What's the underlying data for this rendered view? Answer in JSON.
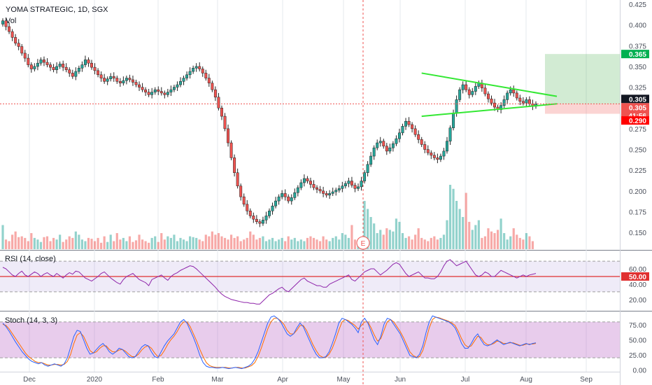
{
  "header": {
    "symbol_line": "YOMA STRATEGIC, 1D, SGX",
    "vol_label": "Vol"
  },
  "colors": {
    "up": "#26a69a",
    "down": "#ef5350",
    "accent": "#3179f5"
  },
  "chart_data": [
    {
      "type": "candlestick",
      "title": "YOMA STRATEGIC, 1D, SGX",
      "x_labels": [
        "Dec",
        "2020",
        "Feb",
        "Mar",
        "Apr",
        "May",
        "Jun",
        "Jul",
        "Aug",
        "Sep"
      ],
      "y_ticks": [
        "0.425",
        "0.400",
        "0.375",
        "0.350",
        "0.325",
        "0.300",
        "0.275",
        "0.250",
        "0.225",
        "0.200",
        "0.175",
        "0.150"
      ],
      "ylim": [
        0.14,
        0.425
      ],
      "price_levels": [
        {
          "label": "0.365",
          "value": 0.365,
          "color": "#00b050"
        },
        {
          "label": "0.305",
          "value": 0.305,
          "color": "#131722"
        },
        {
          "label": "0.305",
          "value": 0.305,
          "color": "#ef5350"
        },
        {
          "label": "41:56",
          "value": 0.296,
          "color": "#ef5350"
        },
        {
          "label": "0.290",
          "value": 0.29,
          "color": "#ff0000"
        }
      ],
      "closes": [
        0.405,
        0.398,
        0.392,
        0.385,
        0.378,
        0.374,
        0.366,
        0.36,
        0.352,
        0.347,
        0.35,
        0.354,
        0.358,
        0.355,
        0.352,
        0.349,
        0.346,
        0.35,
        0.353,
        0.349,
        0.346,
        0.342,
        0.338,
        0.344,
        0.348,
        0.352,
        0.358,
        0.354,
        0.349,
        0.345,
        0.34,
        0.336,
        0.332,
        0.335,
        0.338,
        0.336,
        0.332,
        0.33,
        0.333,
        0.336,
        0.334,
        0.331,
        0.328,
        0.325,
        0.322,
        0.319,
        0.316,
        0.319,
        0.322,
        0.32,
        0.318,
        0.316,
        0.319,
        0.322,
        0.325,
        0.328,
        0.332,
        0.336,
        0.34,
        0.344,
        0.348,
        0.35,
        0.347,
        0.342,
        0.336,
        0.33,
        0.322,
        0.313,
        0.3,
        0.29,
        0.275,
        0.258,
        0.24,
        0.222,
        0.206,
        0.193,
        0.184,
        0.176,
        0.17,
        0.166,
        0.163,
        0.161,
        0.165,
        0.17,
        0.176,
        0.182,
        0.188,
        0.193,
        0.197,
        0.193,
        0.188,
        0.192,
        0.198,
        0.204,
        0.21,
        0.215,
        0.212,
        0.208,
        0.204,
        0.202,
        0.2,
        0.197,
        0.195,
        0.197,
        0.199,
        0.201,
        0.203,
        0.206,
        0.209,
        0.212,
        0.207,
        0.203,
        0.205,
        0.212,
        0.222,
        0.232,
        0.242,
        0.252,
        0.258,
        0.26,
        0.254,
        0.248,
        0.252,
        0.257,
        0.263,
        0.27,
        0.278,
        0.284,
        0.28,
        0.275,
        0.268,
        0.262,
        0.256,
        0.25,
        0.246,
        0.243,
        0.24,
        0.238,
        0.242,
        0.248,
        0.26,
        0.276,
        0.294,
        0.31,
        0.322,
        0.328,
        0.322,
        0.316,
        0.32,
        0.326,
        0.33,
        0.324,
        0.317,
        0.311,
        0.306,
        0.301,
        0.298,
        0.303,
        0.31,
        0.318,
        0.322,
        0.318,
        0.312,
        0.308,
        0.306,
        0.31,
        0.305,
        0.302,
        0.305
      ],
      "volumes": [
        30,
        12,
        10,
        18,
        22,
        15,
        16,
        14,
        10,
        20,
        14,
        12,
        9,
        15,
        16,
        10,
        14,
        12,
        18,
        9,
        12,
        16,
        14,
        22,
        18,
        12,
        10,
        14,
        13,
        10,
        14,
        8,
        16,
        9,
        18,
        10,
        20,
        12,
        14,
        10,
        16,
        9,
        11,
        18,
        12,
        10,
        8,
        14,
        16,
        9,
        20,
        12,
        16,
        14,
        18,
        10,
        14,
        12,
        10,
        16,
        15,
        14,
        12,
        10,
        18,
        16,
        22,
        18,
        20,
        16,
        14,
        12,
        18,
        14,
        16,
        10,
        12,
        14,
        22,
        18,
        12,
        14,
        16,
        10,
        12,
        14,
        10,
        12,
        14,
        10,
        16,
        12,
        14,
        10,
        12,
        10,
        14,
        16,
        14,
        12,
        10,
        16,
        12,
        10,
        14,
        16,
        12,
        20,
        18,
        14,
        30,
        12,
        8,
        10,
        60,
        50,
        40,
        32,
        20,
        24,
        18,
        26,
        24,
        22,
        38,
        34,
        20,
        14,
        16,
        12,
        18,
        26,
        14,
        12,
        10,
        14,
        16,
        12,
        14,
        18,
        36,
        80,
        75,
        60,
        50,
        40,
        70,
        34,
        24,
        30,
        36,
        14,
        16,
        26,
        22,
        20,
        24,
        38,
        20,
        12,
        16,
        26,
        18,
        14,
        12,
        20,
        16,
        10
      ],
      "triangle": {
        "upper": [
          [
            0.342,
            132
          ],
          [
            0.314,
            158
          ]
        ],
        "lower": [
          [
            0.29,
            132
          ],
          [
            0.305,
            158
          ]
        ]
      },
      "target_box": {
        "top": 0.365,
        "entry": 0.305,
        "stop": 0.293
      }
    },
    {
      "type": "line",
      "title": "RSI (14, close)",
      "y_ticks": [
        "60.00",
        "40.00",
        "20.00"
      ],
      "ylim": [
        7,
        82
      ],
      "level": {
        "label": "50.00",
        "value": 50
      },
      "values": [
        62,
        60,
        56,
        52,
        50,
        54,
        57,
        52,
        50,
        53,
        56,
        54,
        50,
        53,
        55,
        52,
        50,
        54,
        51,
        48,
        52,
        55,
        53,
        57,
        56,
        52,
        48,
        46,
        44,
        47,
        50,
        54,
        56,
        52,
        48,
        45,
        42,
        40,
        46,
        50,
        52,
        54,
        50,
        46,
        44,
        42,
        38,
        46,
        48,
        50,
        52,
        48,
        45,
        50,
        53,
        55,
        58,
        60,
        62,
        64,
        63,
        60,
        56,
        52,
        48,
        44,
        40,
        36,
        31,
        27,
        24,
        22,
        20,
        19,
        18,
        17,
        16,
        16,
        15,
        15,
        14,
        14,
        18,
        22,
        26,
        28,
        31,
        34,
        36,
        32,
        30,
        34,
        38,
        42,
        46,
        48,
        44,
        42,
        40,
        38,
        38,
        36,
        36,
        40,
        42,
        44,
        46,
        48,
        50,
        52,
        46,
        44,
        48,
        52,
        56,
        58,
        60,
        60,
        56,
        52,
        55,
        58,
        62,
        66,
        68,
        66,
        60,
        54,
        50,
        52,
        54,
        56,
        52,
        48,
        48,
        47,
        47,
        50,
        56,
        64,
        70,
        72,
        68,
        64,
        66,
        68,
        70,
        64,
        58,
        52,
        50,
        52,
        56,
        54,
        50,
        50,
        54,
        58,
        56,
        54,
        52,
        50,
        48,
        50,
        52,
        50,
        52,
        53,
        54
      ],
      "x_min": 0,
      "x_max": 165
    },
    {
      "type": "line",
      "title": "Stoch (14, 3, 3)",
      "y_ticks": [
        "75.00",
        "50.00",
        "25.00",
        "0.00"
      ],
      "ylim": [
        -2,
        95
      ],
      "bands": [
        20,
        80
      ],
      "k": [
        78,
        72,
        64,
        55,
        46,
        38,
        30,
        24,
        18,
        14,
        12,
        10,
        12,
        8,
        6,
        8,
        10,
        8,
        6,
        10,
        20,
        38,
        56,
        66,
        64,
        50,
        36,
        26,
        28,
        34,
        40,
        44,
        38,
        30,
        26,
        30,
        36,
        34,
        28,
        22,
        20,
        22,
        30,
        38,
        42,
        40,
        30,
        22,
        20,
        30,
        40,
        48,
        54,
        60,
        70,
        80,
        84,
        78,
        66,
        54,
        40,
        24,
        12,
        6,
        4,
        4,
        3,
        3,
        4,
        3,
        2,
        3,
        4,
        3,
        2,
        4,
        6,
        10,
        18,
        30,
        46,
        62,
        78,
        88,
        90,
        86,
        80,
        70,
        60,
        56,
        60,
        70,
        78,
        72,
        60,
        48,
        36,
        26,
        20,
        20,
        22,
        30,
        44,
        60,
        78,
        86,
        84,
        80,
        76,
        70,
        62,
        80,
        86,
        78,
        64,
        50,
        42,
        56,
        76,
        86,
        84,
        76,
        68,
        60,
        48,
        36,
        24,
        22,
        20,
        26,
        40,
        62,
        80,
        90,
        88,
        86,
        84,
        82,
        80,
        76,
        70,
        58,
        44,
        36,
        36,
        44,
        54,
        60,
        50,
        42,
        40,
        42,
        46,
        50,
        46,
        42,
        44,
        46,
        44,
        42,
        40,
        42,
        44,
        42,
        44,
        45
      ],
      "d": [
        76,
        74,
        68,
        60,
        52,
        44,
        36,
        28,
        22,
        18,
        14,
        12,
        12,
        10,
        8,
        8,
        9,
        9,
        8,
        9,
        14,
        26,
        44,
        58,
        62,
        56,
        44,
        32,
        28,
        30,
        36,
        40,
        40,
        34,
        30,
        30,
        33,
        34,
        31,
        26,
        22,
        22,
        26,
        33,
        38,
        40,
        36,
        28,
        22,
        24,
        32,
        42,
        50,
        56,
        64,
        74,
        80,
        80,
        72,
        60,
        48,
        34,
        22,
        12,
        7,
        5,
        4,
        4,
        4,
        4,
        3,
        3,
        4,
        4,
        3,
        3,
        5,
        7,
        12,
        22,
        36,
        52,
        68,
        80,
        86,
        86,
        82,
        76,
        66,
        60,
        60,
        66,
        74,
        74,
        66,
        54,
        42,
        32,
        24,
        21,
        21,
        26,
        36,
        50,
        66,
        80,
        84,
        82,
        78,
        74,
        68,
        74,
        80,
        80,
        70,
        58,
        48,
        52,
        66,
        80,
        84,
        80,
        72,
        64,
        54,
        42,
        30,
        24,
        21,
        22,
        32,
        50,
        70,
        84,
        88,
        87,
        85,
        83,
        81,
        78,
        74,
        64,
        52,
        42,
        38,
        40,
        48,
        56,
        54,
        46,
        42,
        42,
        44,
        48,
        47,
        44,
        44,
        45,
        45,
        43,
        41,
        41,
        43,
        43,
        43,
        44
      ],
      "x_min": 0,
      "x_max": 165
    }
  ],
  "panels": {
    "rsi": {
      "title": "RSI (14, close)"
    },
    "stoch": {
      "title": "Stoch (14, 3, 3)"
    }
  },
  "earnings_marker": "E"
}
